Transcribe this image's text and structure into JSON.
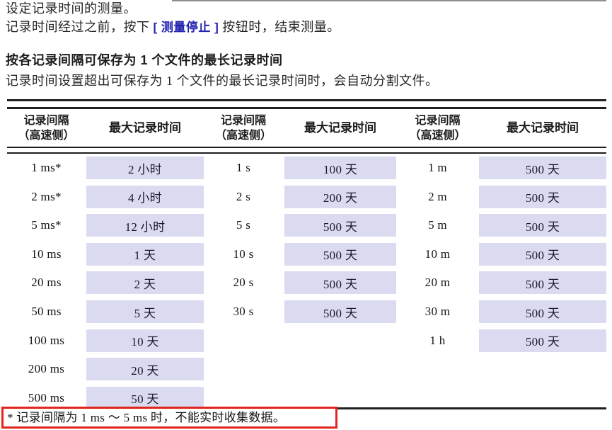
{
  "page": {
    "intro_line1": "设定记录时间的测量。",
    "intro_line2_pre": "记录时间经过之前，按下 ",
    "intro_line2_button": "[ 测量停止 ]",
    "intro_line2_post": " 按钮时，结束测量。",
    "section_heading": "按各记录间隔可保存为 1 个文件的最长记录时间",
    "section_desc": "记录时间设置超出可保存为 1 个文件的最长记录时间时，会自动分割文件。",
    "footnote": "* 记录间隔为 1 ms ～ 5 ms 时，不能实时收集数据。"
  },
  "table": {
    "header": {
      "interval_line1": "记录间隔",
      "interval_line2": "（高速侧）",
      "max_time_label": "最大记录时间"
    },
    "groups": [
      {
        "rows": [
          {
            "interval": "1 ms*",
            "max": "2 小时"
          },
          {
            "interval": "2 ms*",
            "max": "4 小时"
          },
          {
            "interval": "5 ms*",
            "max": "12 小时"
          },
          {
            "interval": "10 ms",
            "max": "1 天"
          },
          {
            "interval": "20 ms",
            "max": "2 天"
          },
          {
            "interval": "50 ms",
            "max": "5 天"
          },
          {
            "interval": "100 ms",
            "max": "10 天"
          },
          {
            "interval": "200 ms",
            "max": "20 天"
          },
          {
            "interval": "500 ms",
            "max": "50 天"
          }
        ]
      },
      {
        "rows": [
          {
            "interval": "1 s",
            "max": "100 天"
          },
          {
            "interval": "2 s",
            "max": "200 天"
          },
          {
            "interval": "5 s",
            "max": "500 天"
          },
          {
            "interval": "10 s",
            "max": "500 天"
          },
          {
            "interval": "20 s",
            "max": "500 天"
          },
          {
            "interval": "30 s",
            "max": "500 天"
          }
        ]
      },
      {
        "rows": [
          {
            "interval": "1 m",
            "max": "500 天"
          },
          {
            "interval": "2 m",
            "max": "500 天"
          },
          {
            "interval": "5 m",
            "max": "500 天"
          },
          {
            "interval": "10 m",
            "max": "500 天"
          },
          {
            "interval": "20 m",
            "max": "500 天"
          },
          {
            "interval": "30 m",
            "max": "500 天"
          },
          {
            "interval": "1 h",
            "max": "500 天"
          }
        ]
      }
    ]
  },
  "colors": {
    "cell_bg": "#dadaf0",
    "accent_blue": "#2323b0",
    "highlight_red": "#e3241c",
    "line_dark": "#1f1f1f"
  }
}
